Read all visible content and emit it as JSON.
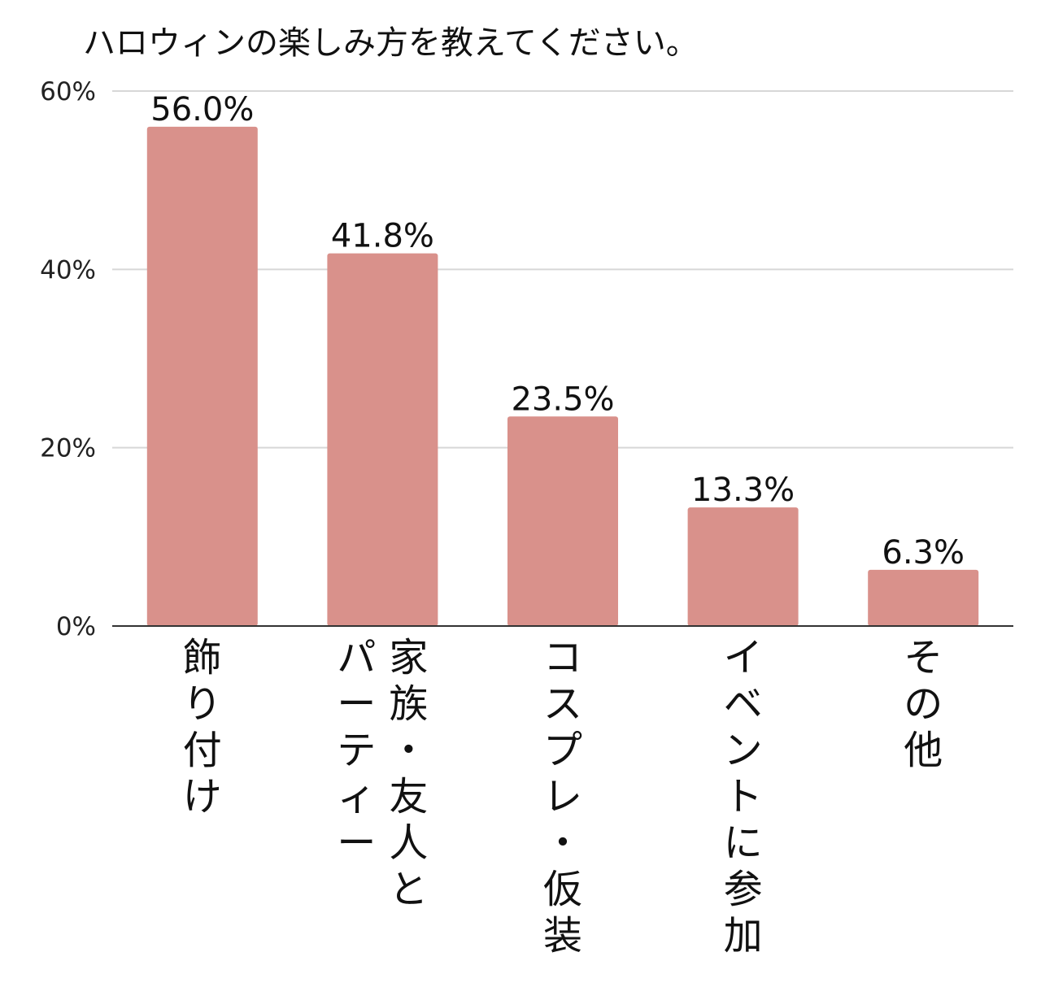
{
  "chart_data": {
    "type": "bar",
    "title": "ハロウィンの楽しみ方を教えてください。",
    "xlabel": "",
    "ylabel": "",
    "categories": [
      "飾り付け",
      "家族・友人とパーティー",
      "コスプレ・仮装",
      "イベントに参加",
      "その他"
    ],
    "category_label_lines": [
      [
        "飾り付け"
      ],
      [
        "家族・友人と",
        "パーティー"
      ],
      [
        "コスプレ・仮装"
      ],
      [
        "イベントに参加"
      ],
      [
        "その他"
      ]
    ],
    "values": [
      56.0,
      41.8,
      23.5,
      13.3,
      6.3
    ],
    "data_labels": [
      "56.0%",
      "41.8%",
      "23.5%",
      "13.3%",
      "6.3%"
    ],
    "ylim": [
      0,
      60
    ],
    "yticks": [
      0,
      20,
      40,
      60
    ],
    "ytick_labels": [
      "0%",
      "20%",
      "40%",
      "60%"
    ],
    "grid": true,
    "bar_color": "#d9918b",
    "grid_color": "#d7d7d7",
    "axis_color": "#333333"
  }
}
